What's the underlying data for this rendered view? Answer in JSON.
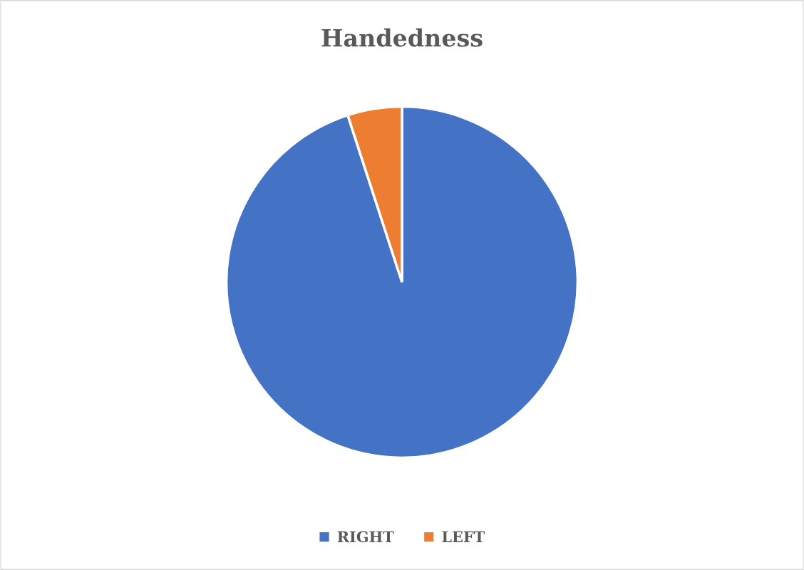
{
  "chart_data": {
    "type": "pie",
    "title": "Handedness",
    "categories": [
      "RIGHT",
      "LEFT"
    ],
    "values": [
      95,
      5
    ],
    "colors": [
      "#4472c4",
      "#ed7d31"
    ],
    "legend": "bottom"
  }
}
